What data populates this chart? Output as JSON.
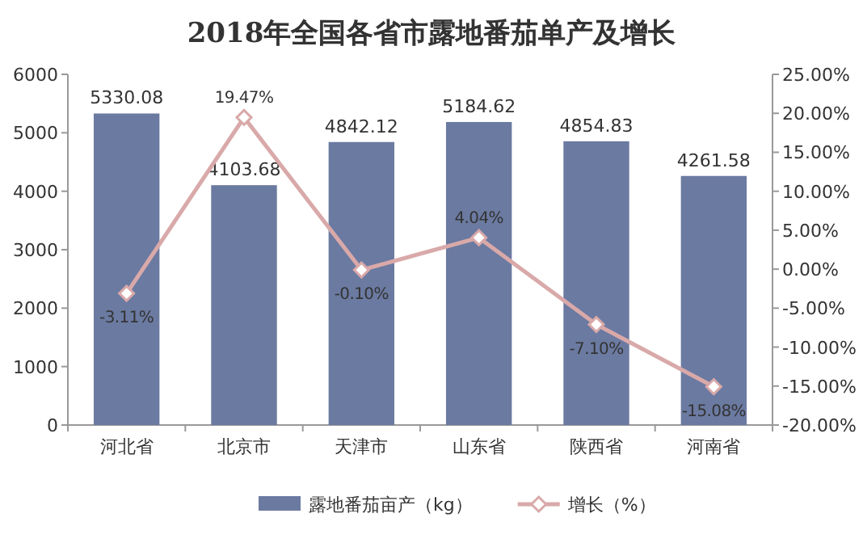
{
  "chart_data": {
    "type": "bar",
    "title": "2018年全国各省市露地番茄单产及增长",
    "categories": [
      "河北省",
      "北京市",
      "天津市",
      "山东省",
      "陕西省",
      "河南省"
    ],
    "series": [
      {
        "name": "露地番茄亩产（kg）",
        "color": "#6b7aa1",
        "values": [
          5330.08,
          4103.68,
          4842.12,
          5184.62,
          4854.83,
          4261.58
        ],
        "value_labels": [
          "5330.08",
          "4103.68",
          "4842.12",
          "5184.62",
          "4854.83",
          "4261.58"
        ]
      },
      {
        "name": "增长（%）",
        "type": "line",
        "axis": "y2",
        "color": "#d9a9a9",
        "values": [
          -3.11,
          19.47,
          -0.1,
          4.04,
          -7.1,
          -15.08
        ],
        "value_labels": [
          "-3.11%",
          "19.47%",
          "-0.10%",
          "4.04%",
          "-7.10%",
          "-15.08%"
        ]
      }
    ],
    "ylim": [
      0,
      6000
    ],
    "yticks": [
      0,
      1000,
      2000,
      3000,
      4000,
      5000,
      6000
    ],
    "y2lim": [
      -20,
      25
    ],
    "y2ticks": [
      {
        "value": -20,
        "label": "-20.00%"
      },
      {
        "value": -15,
        "label": "-15.00%"
      },
      {
        "value": -10,
        "label": "-10.00%"
      },
      {
        "value": -5,
        "label": "-5.00%"
      },
      {
        "value": 0,
        "label": "0.00%"
      },
      {
        "value": 5,
        "label": "5.00%"
      },
      {
        "value": 10,
        "label": "10.00%"
      },
      {
        "value": 15,
        "label": "15.00%"
      },
      {
        "value": 20,
        "label": "20.00%"
      },
      {
        "value": 25,
        "label": "25.00%"
      }
    ],
    "legend": "bottom",
    "marker": "diamond",
    "grid": false
  }
}
